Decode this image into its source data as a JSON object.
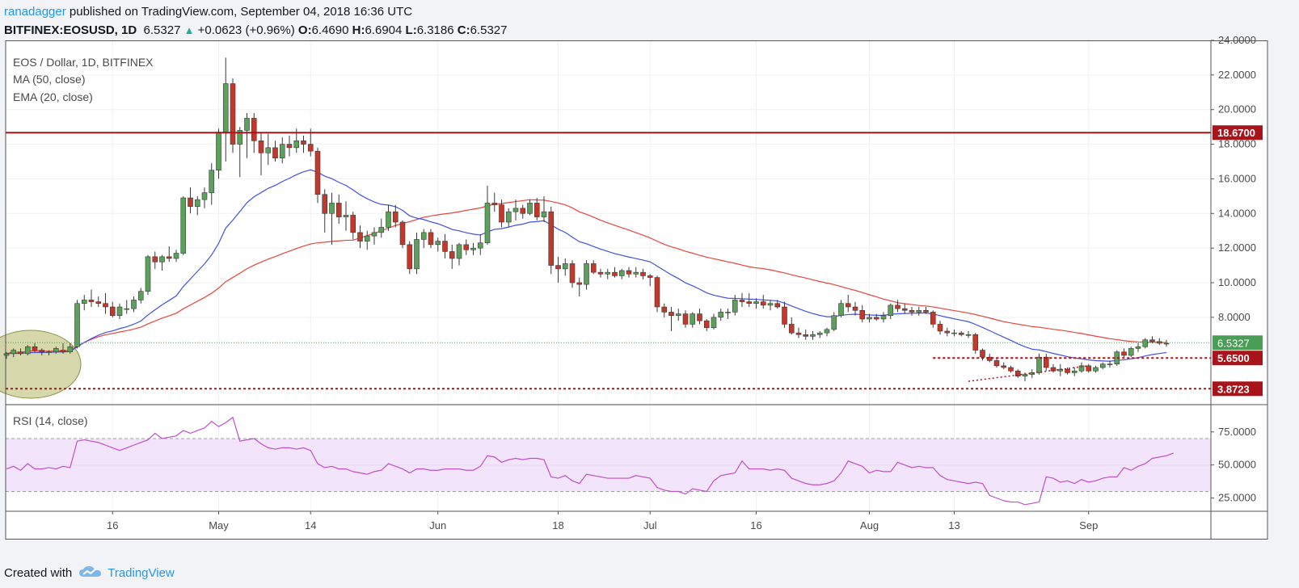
{
  "header": {
    "author": "ranadagger",
    "published_text": "published on TradingView.com, September 04, 2018 16:36 UTC",
    "symbol": "BITFINEX:EOSUSD, 1D",
    "last": "6.5327",
    "change_arrow": "▲",
    "change": "+0.0623 (+0.96%)",
    "o_label": "O:",
    "o_value": "6.4690",
    "h_label": "H:",
    "h_value": "6.6904",
    "l_label": "L:",
    "l_value": "6.3186",
    "c_label": "C:",
    "c_value": "6.5327"
  },
  "footer": {
    "created_with": "Created with",
    "brand": "TradingView",
    "logo_icon": "tradingview-cloud-icon"
  },
  "colors": {
    "up": "#5ba15b",
    "down": "#c0392b",
    "ema20": "#3f51e8",
    "ma50": "#e8453c",
    "level_line": "#a8141a",
    "rsi": "#c04fc9",
    "rsi_band": "#f2e5fb",
    "last_price": "#4a9d56"
  },
  "chart_data": [
    {
      "type": "candlestick",
      "title": "EOS / Dollar, 1D, BITFINEX",
      "indicators": [
        "MA (50, close)",
        "EMA (20, close)"
      ],
      "y_ticks": [
        "8.0000",
        "10.0000",
        "12.0000",
        "14.0000",
        "16.0000",
        "18.0000",
        "20.0000",
        "22.0000",
        "24.0000"
      ],
      "ylim": [
        3.0,
        24.0
      ],
      "x_labels": [
        "16",
        "May",
        "14",
        "Jun",
        "18",
        "Jul",
        "16",
        "Aug",
        "13",
        "Sep"
      ],
      "x_label_dates": [
        "2018-04-16",
        "2018-05-01",
        "2018-05-14",
        "2018-06-01",
        "2018-06-18",
        "2018-07-01",
        "2018-07-16",
        "2018-08-01",
        "2018-08-13",
        "2018-09-01"
      ],
      "first_date": "2018-04-01",
      "candles": [
        [
          5.8,
          6.0,
          5.6,
          5.9
        ],
        [
          5.9,
          6.2,
          5.7,
          6.1
        ],
        [
          6.0,
          6.2,
          5.8,
          5.9
        ],
        [
          5.9,
          6.4,
          5.8,
          6.3
        ],
        [
          6.3,
          6.5,
          6.0,
          6.1
        ],
        [
          6.1,
          6.2,
          5.8,
          6.0
        ],
        [
          6.0,
          6.1,
          5.8,
          6.0
        ],
        [
          6.0,
          6.3,
          5.9,
          6.2
        ],
        [
          6.1,
          6.5,
          5.9,
          6.0
        ],
        [
          6.0,
          6.5,
          5.9,
          6.3
        ],
        [
          6.3,
          9.0,
          6.2,
          8.8
        ],
        [
          8.8,
          9.3,
          8.4,
          9.0
        ],
        [
          9.0,
          9.6,
          8.6,
          8.9
        ],
        [
          8.9,
          9.2,
          8.6,
          8.8
        ],
        [
          8.8,
          9.4,
          8.2,
          8.6
        ],
        [
          8.6,
          8.9,
          8.0,
          8.1
        ],
        [
          8.1,
          8.8,
          7.9,
          8.6
        ],
        [
          8.5,
          9.0,
          8.2,
          8.5
        ],
        [
          8.5,
          9.2,
          8.3,
          9.0
        ],
        [
          9.0,
          9.7,
          8.8,
          9.5
        ],
        [
          9.5,
          11.6,
          9.3,
          11.5
        ],
        [
          11.5,
          11.8,
          10.8,
          11.2
        ],
        [
          11.2,
          11.6,
          10.7,
          11.5
        ],
        [
          11.5,
          12.1,
          11.2,
          11.4
        ],
        [
          11.4,
          11.9,
          11.2,
          11.7
        ],
        [
          11.7,
          15.0,
          11.6,
          14.9
        ],
        [
          14.9,
          15.5,
          14.0,
          14.4
        ],
        [
          14.4,
          15.0,
          13.9,
          14.8
        ],
        [
          14.8,
          15.5,
          14.3,
          15.2
        ],
        [
          15.2,
          16.9,
          14.5,
          16.5
        ],
        [
          16.5,
          18.9,
          16.0,
          18.7
        ],
        [
          18.7,
          23.0,
          17.0,
          21.5
        ],
        [
          21.5,
          21.8,
          17.5,
          18.0
        ],
        [
          18.0,
          19.0,
          16.1,
          18.8
        ],
        [
          18.8,
          19.8,
          17.2,
          19.5
        ],
        [
          19.5,
          19.8,
          17.5,
          18.2
        ],
        [
          18.2,
          18.7,
          16.2,
          17.5
        ],
        [
          17.5,
          18.6,
          16.8,
          17.8
        ],
        [
          17.8,
          18.2,
          17.0,
          17.2
        ],
        [
          17.2,
          18.4,
          16.9,
          18.0
        ],
        [
          18.0,
          18.5,
          17.3,
          17.8
        ],
        [
          17.8,
          18.9,
          17.5,
          18.2
        ],
        [
          18.2,
          18.5,
          17.5,
          18.0
        ],
        [
          18.0,
          18.9,
          17.3,
          17.6
        ],
        [
          17.6,
          17.8,
          14.6,
          15.1
        ],
        [
          15.1,
          15.4,
          12.9,
          14.0
        ],
        [
          14.0,
          15.2,
          12.2,
          14.6
        ],
        [
          14.6,
          15.1,
          13.4,
          13.8
        ],
        [
          13.8,
          14.7,
          13.0,
          13.9
        ],
        [
          13.9,
          14.1,
          12.5,
          12.9
        ],
        [
          12.9,
          13.3,
          12.0,
          12.4
        ],
        [
          12.4,
          13.0,
          11.9,
          12.7
        ],
        [
          12.7,
          13.2,
          12.2,
          12.9
        ],
        [
          12.9,
          13.7,
          12.6,
          13.2
        ],
        [
          13.2,
          14.5,
          13.0,
          14.1
        ],
        [
          14.1,
          14.5,
          13.2,
          13.5
        ],
        [
          13.5,
          13.6,
          12.0,
          12.2
        ],
        [
          12.2,
          12.4,
          10.5,
          10.8
        ],
        [
          10.8,
          12.9,
          10.5,
          12.5
        ],
        [
          12.5,
          13.1,
          12.0,
          12.9
        ],
        [
          12.9,
          13.1,
          12.0,
          12.2
        ],
        [
          12.2,
          12.6,
          11.8,
          12.4
        ],
        [
          12.4,
          12.8,
          11.4,
          11.8
        ],
        [
          11.8,
          12.2,
          10.8,
          11.4
        ],
        [
          11.4,
          12.3,
          11.0,
          12.2
        ],
        [
          12.2,
          12.5,
          11.6,
          11.9
        ],
        [
          11.9,
          12.3,
          11.6,
          12.0
        ],
        [
          12.0,
          12.8,
          11.6,
          12.3
        ],
        [
          12.3,
          15.6,
          12.2,
          14.6
        ],
        [
          14.6,
          15.2,
          14.1,
          14.5
        ],
        [
          14.5,
          14.8,
          13.2,
          13.5
        ],
        [
          13.5,
          14.3,
          13.2,
          14.1
        ],
        [
          14.1,
          14.8,
          13.6,
          14.3
        ],
        [
          14.3,
          14.5,
          13.7,
          14.0
        ],
        [
          14.0,
          14.8,
          13.9,
          14.6
        ],
        [
          14.6,
          14.9,
          13.6,
          13.8
        ],
        [
          13.8,
          15.0,
          13.5,
          14.1
        ],
        [
          14.1,
          14.4,
          10.5,
          11.0
        ],
        [
          11.0,
          11.5,
          10.0,
          10.8
        ],
        [
          10.8,
          11.4,
          10.4,
          11.1
        ],
        [
          11.1,
          11.3,
          9.7,
          10.0
        ],
        [
          10.0,
          10.3,
          9.2,
          9.9
        ],
        [
          9.9,
          11.3,
          9.6,
          11.1
        ],
        [
          11.1,
          11.3,
          10.5,
          10.6
        ],
        [
          10.6,
          10.8,
          10.3,
          10.5
        ],
        [
          10.5,
          10.8,
          10.2,
          10.6
        ],
        [
          10.6,
          10.9,
          10.3,
          10.4
        ],
        [
          10.4,
          10.8,
          10.2,
          10.7
        ],
        [
          10.7,
          10.9,
          10.3,
          10.5
        ],
        [
          10.5,
          10.9,
          10.3,
          10.6
        ],
        [
          10.6,
          10.8,
          10.2,
          10.4
        ],
        [
          10.4,
          10.5,
          9.8,
          10.3
        ],
        [
          10.3,
          10.4,
          8.3,
          8.6
        ],
        [
          8.6,
          8.8,
          8.0,
          8.3
        ],
        [
          8.3,
          8.6,
          7.2,
          8.1
        ],
        [
          8.1,
          8.5,
          7.8,
          8.2
        ],
        [
          8.2,
          8.4,
          7.4,
          7.6
        ],
        [
          7.6,
          8.3,
          7.4,
          8.2
        ],
        [
          8.2,
          8.5,
          7.6,
          7.8
        ],
        [
          7.8,
          7.9,
          7.2,
          7.4
        ],
        [
          7.4,
          8.2,
          7.3,
          8.0
        ],
        [
          8.0,
          8.5,
          7.8,
          8.3
        ],
        [
          8.3,
          8.5,
          7.9,
          8.3
        ],
        [
          8.3,
          9.3,
          8.1,
          9.0
        ],
        [
          9.0,
          9.4,
          8.6,
          8.9
        ],
        [
          8.9,
          9.4,
          8.6,
          8.8
        ],
        [
          8.8,
          9.1,
          8.5,
          8.9
        ],
        [
          8.9,
          9.3,
          8.5,
          8.7
        ],
        [
          8.7,
          9.0,
          8.4,
          8.8
        ],
        [
          8.8,
          9.0,
          8.5,
          8.6
        ],
        [
          8.6,
          8.9,
          7.4,
          7.6
        ],
        [
          7.6,
          8.0,
          7.0,
          7.1
        ],
        [
          7.1,
          7.4,
          6.8,
          7.0
        ],
        [
          7.0,
          7.3,
          6.7,
          6.9
        ],
        [
          6.9,
          7.2,
          6.7,
          7.0
        ],
        [
          7.0,
          7.2,
          6.8,
          7.1
        ],
        [
          7.1,
          7.4,
          6.9,
          7.3
        ],
        [
          7.3,
          8.3,
          7.2,
          8.1
        ],
        [
          8.1,
          9.0,
          8.0,
          8.8
        ],
        [
          8.8,
          9.3,
          8.3,
          8.6
        ],
        [
          8.6,
          8.9,
          8.1,
          8.4
        ],
        [
          8.4,
          8.7,
          7.7,
          7.9
        ],
        [
          7.9,
          8.2,
          7.7,
          8.0
        ],
        [
          8.0,
          8.2,
          7.8,
          7.9
        ],
        [
          7.9,
          8.3,
          7.7,
          8.1
        ],
        [
          8.1,
          8.8,
          7.9,
          8.7
        ],
        [
          8.7,
          9.0,
          8.3,
          8.5
        ],
        [
          8.5,
          8.8,
          8.2,
          8.4
        ],
        [
          8.4,
          8.6,
          8.1,
          8.3
        ],
        [
          8.3,
          8.6,
          8.1,
          8.4
        ],
        [
          8.4,
          8.6,
          8.2,
          8.3
        ],
        [
          8.3,
          8.4,
          7.4,
          7.6
        ],
        [
          7.6,
          7.8,
          7.0,
          7.2
        ],
        [
          7.2,
          7.4,
          6.9,
          7.1
        ],
        [
          7.1,
          7.3,
          6.9,
          7.1
        ],
        [
          7.1,
          7.2,
          6.9,
          7.0
        ],
        [
          7.0,
          7.2,
          6.8,
          7.0
        ],
        [
          7.0,
          7.1,
          5.9,
          6.1
        ],
        [
          6.1,
          6.2,
          5.5,
          5.7
        ],
        [
          5.7,
          5.9,
          5.4,
          5.5
        ],
        [
          5.5,
          5.6,
          5.1,
          5.2
        ],
        [
          5.2,
          5.4,
          5.0,
          5.1
        ],
        [
          5.1,
          5.2,
          4.8,
          4.9
        ],
        [
          4.9,
          5.0,
          4.5,
          4.6
        ],
        [
          4.6,
          4.8,
          4.3,
          4.7
        ],
        [
          4.7,
          5.0,
          4.5,
          4.8
        ],
        [
          4.8,
          5.9,
          4.7,
          5.7
        ],
        [
          5.7,
          5.9,
          4.9,
          5.1
        ],
        [
          5.1,
          5.3,
          4.8,
          4.9
        ],
        [
          4.9,
          5.3,
          4.6,
          5.0
        ],
        [
          5.0,
          5.1,
          4.7,
          4.8
        ],
        [
          4.8,
          5.1,
          4.6,
          4.9
        ],
        [
          4.9,
          5.4,
          4.8,
          5.2
        ],
        [
          5.2,
          5.3,
          4.8,
          4.9
        ],
        [
          4.9,
          5.2,
          4.8,
          5.1
        ],
        [
          5.1,
          5.4,
          5.0,
          5.3
        ],
        [
          5.3,
          5.5,
          5.1,
          5.3
        ],
        [
          5.3,
          6.1,
          5.2,
          6.0
        ],
        [
          6.0,
          6.2,
          5.7,
          5.8
        ],
        [
          5.8,
          6.3,
          5.7,
          6.2
        ],
        [
          6.2,
          6.5,
          6.0,
          6.3
        ],
        [
          6.3,
          6.8,
          6.2,
          6.7
        ],
        [
          6.7,
          6.9,
          6.5,
          6.6
        ],
        [
          6.6,
          6.8,
          6.4,
          6.5
        ],
        [
          6.5,
          6.7,
          6.3,
          6.5
        ]
      ],
      "levels": [
        {
          "value": 18.67,
          "label": "18.6700",
          "style": "solid"
        },
        {
          "value": 5.65,
          "label": "5.6500",
          "style": "dashed"
        },
        {
          "value": 3.8723,
          "label": "3.8723",
          "style": "dashed"
        }
      ],
      "last_price": {
        "value": 6.5327,
        "label": "6.5327"
      }
    },
    {
      "type": "line",
      "title": "RSI (14, close)",
      "y_ticks": [
        "25.0000",
        "50.0000",
        "75.0000"
      ],
      "ylim": [
        15,
        95
      ],
      "band": [
        30,
        70
      ],
      "values": [
        47,
        49,
        46,
        51,
        47,
        47,
        48,
        47,
        49,
        48,
        68,
        69,
        68,
        67,
        65,
        63,
        61,
        63,
        65,
        67,
        69,
        74,
        70,
        71,
        72,
        76,
        74,
        76,
        78,
        83,
        79,
        82,
        86,
        68,
        69,
        70,
        66,
        63,
        62,
        63,
        63,
        62,
        63,
        61,
        51,
        48,
        49,
        47,
        47,
        45,
        44,
        43,
        45,
        46,
        51,
        49,
        47,
        44,
        47,
        47,
        46,
        46,
        47,
        47,
        47,
        46,
        46,
        49,
        57,
        56,
        52,
        54,
        55,
        54,
        55,
        55,
        54,
        41,
        40,
        42,
        38,
        36,
        43,
        42,
        41,
        40,
        40,
        40,
        40,
        42,
        41,
        40,
        33,
        31,
        30,
        30,
        28,
        32,
        31,
        30,
        38,
        42,
        43,
        44,
        53,
        47,
        47,
        47,
        46,
        47,
        46,
        40,
        38,
        36,
        35,
        35,
        36,
        38,
        44,
        53,
        51,
        49,
        44,
        46,
        45,
        45,
        52,
        50,
        48,
        49,
        48,
        48,
        42,
        39,
        38,
        37,
        36,
        37,
        36,
        27,
        25,
        23,
        22,
        22,
        20,
        21,
        22,
        41,
        40,
        37,
        38,
        36,
        39,
        37,
        38,
        40,
        41,
        41,
        48,
        46,
        49,
        51,
        55,
        56,
        57,
        59
      ]
    }
  ]
}
